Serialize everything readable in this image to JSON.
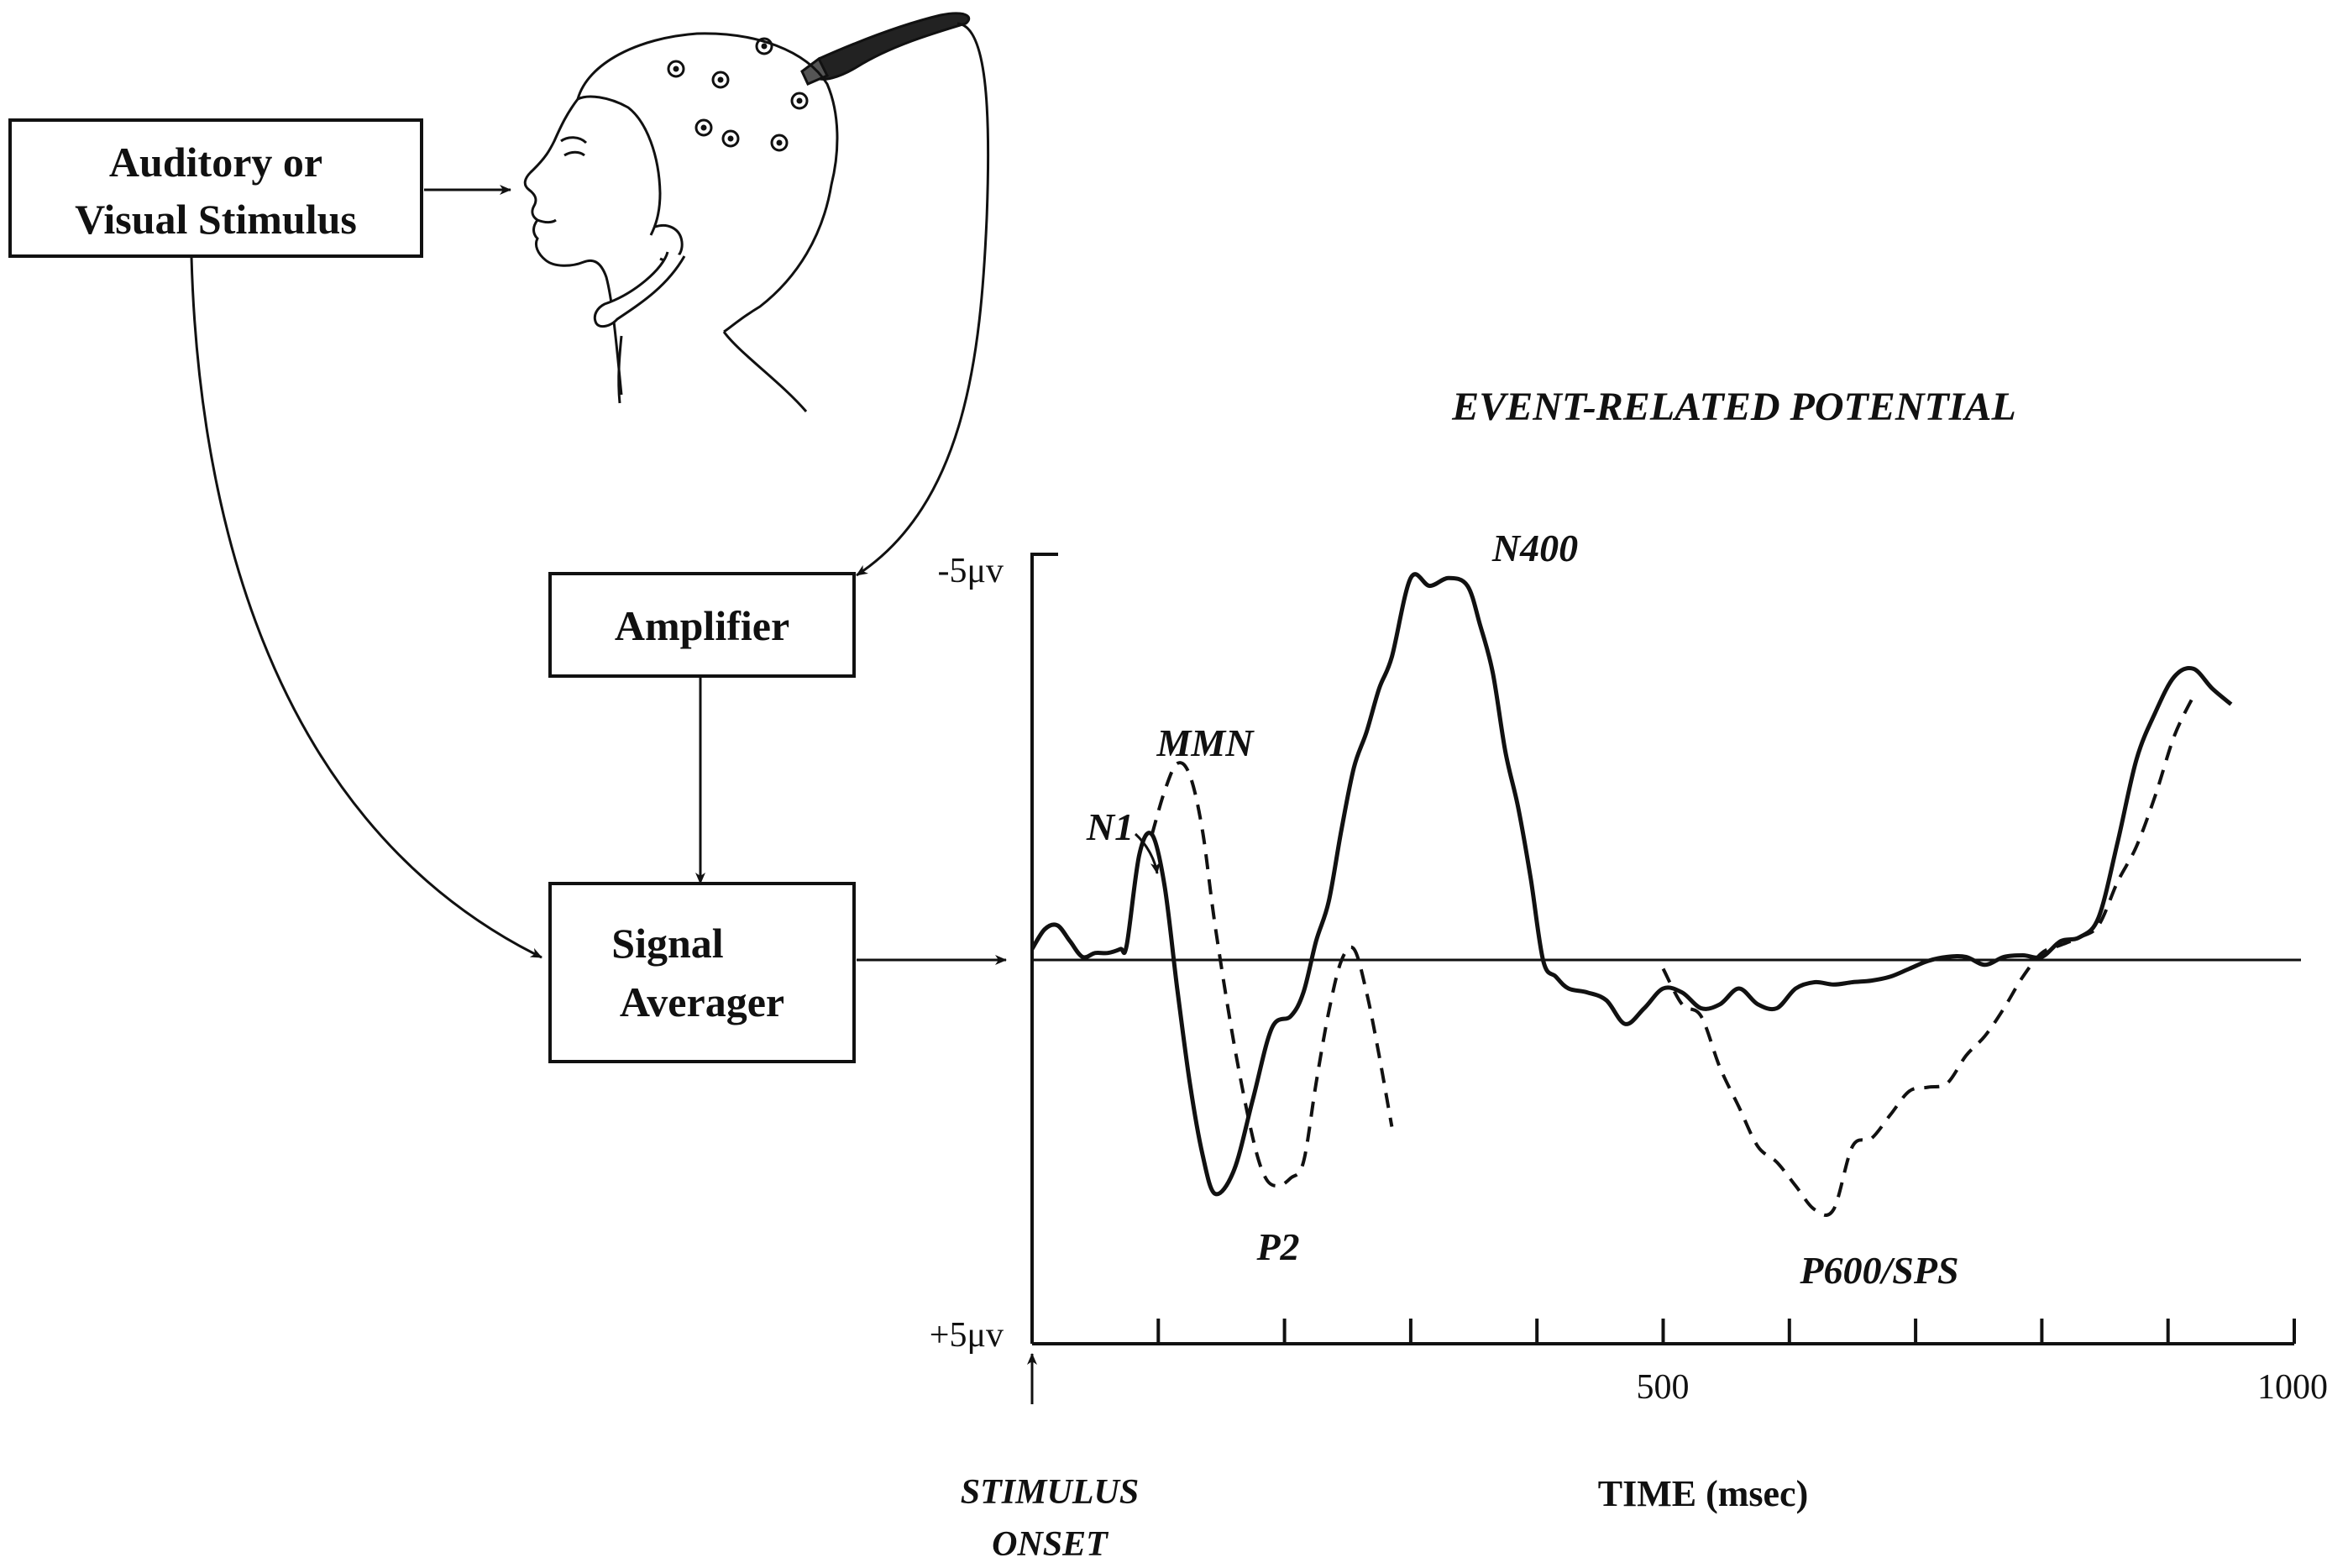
{
  "diagram": {
    "stimulus_box": {
      "line1": "Auditory or",
      "line2": "Visual Stimulus"
    },
    "amplifier_box": {
      "label": "Amplifier"
    },
    "averager_box": {
      "line1": "Signal",
      "line2": "Averager"
    },
    "icons": {
      "head": "eeg-cap-head-icon"
    }
  },
  "chart_data": {
    "type": "line",
    "title": "EVENT-RELATED POTENTIAL",
    "xlabel": "TIME (msec)",
    "x_ticks": [
      0,
      100,
      200,
      300,
      400,
      500,
      600,
      700,
      800,
      900,
      1000
    ],
    "x_tick_labels": {
      "500": "500",
      "1000": "1000"
    },
    "xlim": [
      0,
      1000
    ],
    "y_tick_labels": {
      "top": "-5μv",
      "bottom": "+5μv"
    },
    "ylim": [
      5,
      -5
    ],
    "y_inverted": true,
    "grid": false,
    "stimulus_onset_label": {
      "line1": "STIMULUS",
      "line2": "ONSET"
    },
    "series": [
      {
        "style": "solid",
        "x": [
          0,
          10,
          20,
          30,
          40,
          50,
          60,
          70,
          75,
          85,
          95,
          105,
          115,
          125,
          135,
          145,
          160,
          175,
          190,
          205,
          215,
          225,
          235,
          245,
          255,
          265,
          275,
          285,
          300,
          315,
          330,
          345,
          355,
          365,
          375,
          385,
          395,
          405,
          415,
          425,
          440,
          455,
          470,
          485,
          500,
          515,
          530,
          545,
          560,
          575,
          590,
          605,
          620,
          635,
          650,
          665,
          680,
          695,
          710,
          725,
          740,
          755,
          770,
          785,
          800,
          815,
          830,
          845,
          860,
          875,
          890,
          905,
          920,
          935,
          950
        ],
        "y": [
          0,
          -0.25,
          -0.3,
          -0.1,
          0.1,
          0.05,
          0.05,
          0.0,
          -0.05,
          -1.2,
          -1.45,
          -0.8,
          0.5,
          1.7,
          2.6,
          3.1,
          2.8,
          1.9,
          1.0,
          0.85,
          0.55,
          -0.1,
          -0.6,
          -1.5,
          -2.3,
          -2.75,
          -3.3,
          -3.7,
          -4.7,
          -4.6,
          -4.7,
          -4.6,
          -4.1,
          -3.5,
          -2.5,
          -1.8,
          -0.9,
          0.15,
          0.35,
          0.5,
          0.55,
          0.65,
          0.95,
          0.75,
          0.5,
          0.55,
          0.75,
          0.7,
          0.5,
          0.7,
          0.75,
          0.5,
          0.42,
          0.45,
          0.42,
          0.4,
          0.35,
          0.25,
          0.15,
          0.1,
          0.1,
          0.2,
          0.1,
          0.08,
          0.1,
          -0.1,
          -0.15,
          -0.4,
          -1.35,
          -2.4,
          -3.0,
          -3.45,
          -3.55,
          -3.3,
          -3.1
        ]
      },
      {
        "style": "dashed",
        "x": [
          95,
          105,
          115,
          125,
          135,
          145,
          160,
          175,
          185,
          195,
          205,
          215,
          225,
          235,
          245,
          255,
          265,
          275,
          285,
          500,
          515,
          530,
          545,
          560,
          575,
          590,
          605,
          620,
          635,
          650,
          665,
          680,
          695,
          710,
          725,
          740,
          755,
          770,
          785,
          800,
          815,
          830,
          845,
          860,
          875,
          890,
          905,
          920
        ],
        "y": [
          -1.45,
          -2.0,
          -2.35,
          -2.2,
          -1.5,
          -0.3,
          1.2,
          2.4,
          2.9,
          3.0,
          2.9,
          2.7,
          1.7,
          0.8,
          0.15,
          0.0,
          0.55,
          1.35,
          2.25,
          0.25,
          0.7,
          0.85,
          1.5,
          2.0,
          2.5,
          2.7,
          3.0,
          3.3,
          3.3,
          2.5,
          2.4,
          2.1,
          1.8,
          1.75,
          1.7,
          1.35,
          1.1,
          0.75,
          0.35,
          0.05,
          -0.05,
          -0.15,
          -0.3,
          -0.85,
          -1.3,
          -1.95,
          -2.7,
          -3.2
        ]
      }
    ],
    "annotations": [
      "N1",
      "MMN",
      "P2",
      "N400",
      "P600/SPS"
    ]
  }
}
